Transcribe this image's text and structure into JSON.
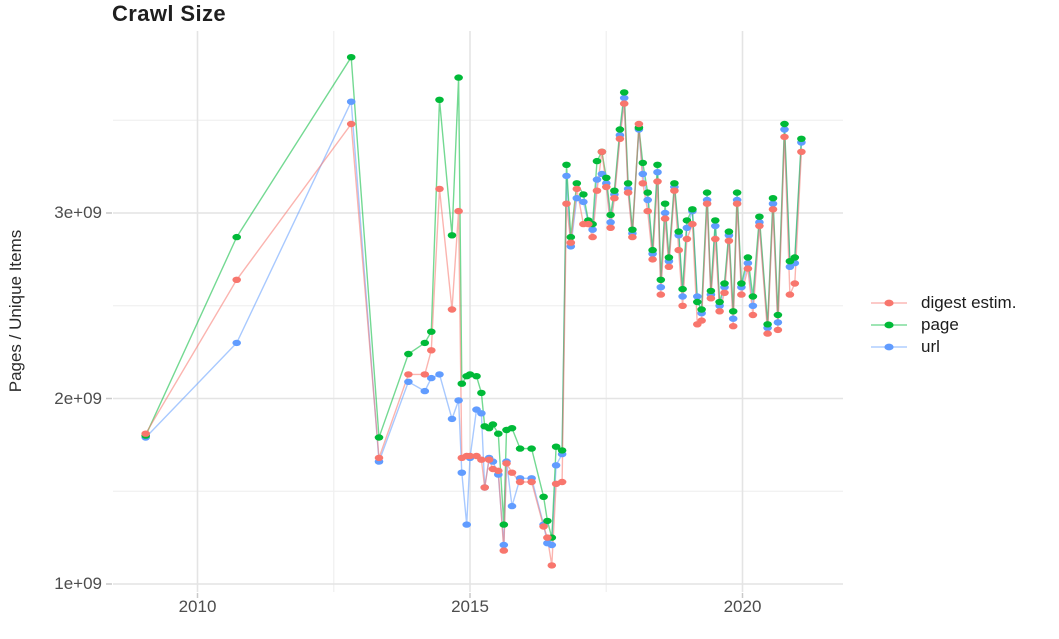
{
  "title": "Crawl Size",
  "axes": {
    "y": {
      "title": "Pages / Unique Items",
      "ticks": [
        {
          "value": 1.0,
          "label": "1e+09"
        },
        {
          "value": 2.0,
          "label": "2e+09"
        },
        {
          "value": 3.0,
          "label": "3e+09"
        }
      ],
      "minor": [
        1.5,
        2.5,
        3.5
      ],
      "range_billions": [
        0.95,
        3.99
      ]
    },
    "x": {
      "ticks": [
        {
          "value": 2010,
          "label": "2010"
        },
        {
          "value": 2015,
          "label": "2015"
        },
        {
          "value": 2020,
          "label": "2020"
        }
      ],
      "minor": [
        2012.5,
        2017.5,
        2022.5
      ],
      "range_years": [
        2008.45,
        2021.84
      ]
    }
  },
  "legend": {
    "items": [
      {
        "label": "digest estim.",
        "color": "#F8766D"
      },
      {
        "label": "page",
        "color": "#00BA38"
      },
      {
        "label": "url",
        "color": "#619CFF"
      }
    ]
  },
  "style": {
    "grid_major_color": "#e4e4e4",
    "grid_minor_color": "#f0f0f0",
    "tick_mark_color": "#c9c9c9",
    "background": "#ffffff",
    "line_opacity": 0.55
  },
  "chart_data": {
    "type": "line",
    "title": "Crawl Size",
    "xlabel": "",
    "ylabel": "Pages / Unique Items",
    "y_unit": "billions (1e9)",
    "grid": true,
    "legend_position": "right",
    "ylim": [
      0.95,
      3.99
    ],
    "xlim": [
      2008.45,
      2021.84
    ],
    "x": [
      2009.05,
      2010.72,
      2012.82,
      2013.33,
      2013.87,
      2014.17,
      2014.29,
      2014.44,
      2014.67,
      2014.79,
      2014.85,
      2014.94,
      2015.0,
      2015.12,
      2015.21,
      2015.27,
      2015.35,
      2015.42,
      2015.52,
      2015.62,
      2015.67,
      2015.77,
      2015.92,
      2016.13,
      2016.35,
      2016.42,
      2016.5,
      2016.58,
      2016.69,
      2016.77,
      2016.85,
      2016.96,
      2017.08,
      2017.17,
      2017.25,
      2017.33,
      2017.42,
      2017.5,
      2017.58,
      2017.65,
      2017.75,
      2017.83,
      2017.9,
      2017.98,
      2018.1,
      2018.17,
      2018.26,
      2018.35,
      2018.44,
      2018.5,
      2018.58,
      2018.65,
      2018.75,
      2018.83,
      2018.9,
      2018.98,
      2019.08,
      2019.17,
      2019.25,
      2019.35,
      2019.42,
      2019.5,
      2019.58,
      2019.67,
      2019.75,
      2019.83,
      2019.9,
      2019.98,
      2020.1,
      2020.19,
      2020.31,
      2020.46,
      2020.56,
      2020.65,
      2020.77,
      2020.87,
      2020.96,
      2021.08
    ],
    "series": [
      {
        "name": "digest estim.",
        "color": "#F8766D",
        "values": [
          1.81,
          2.64,
          3.48,
          1.68,
          2.13,
          2.13,
          2.26,
          3.13,
          2.48,
          3.01,
          1.68,
          1.69,
          1.69,
          1.69,
          1.67,
          1.52,
          1.67,
          1.62,
          1.61,
          1.18,
          1.65,
          1.6,
          1.55,
          1.55,
          1.31,
          1.25,
          1.1,
          1.54,
          1.55,
          3.05,
          2.84,
          3.13,
          2.94,
          2.94,
          2.87,
          3.12,
          3.33,
          3.14,
          2.92,
          3.08,
          3.4,
          3.59,
          3.11,
          2.87,
          3.48,
          3.16,
          3.01,
          2.75,
          3.17,
          2.56,
          2.97,
          2.71,
          3.12,
          2.8,
          2.5,
          2.86,
          2.94,
          2.4,
          2.42,
          3.05,
          2.54,
          2.86,
          2.47,
          2.57,
          2.85,
          2.39,
          3.05,
          2.56,
          2.7,
          2.45,
          2.93,
          2.35,
          3.02,
          2.37,
          3.41,
          2.56,
          2.62,
          3.33
        ]
      },
      {
        "name": "page",
        "color": "#00BA38",
        "values": [
          1.8,
          2.87,
          3.84,
          1.79,
          2.24,
          2.3,
          2.36,
          3.61,
          2.88,
          3.73,
          2.08,
          2.12,
          2.13,
          2.12,
          2.03,
          1.85,
          1.84,
          1.86,
          1.81,
          1.32,
          1.83,
          1.84,
          1.73,
          1.73,
          1.47,
          1.34,
          1.25,
          1.74,
          1.72,
          3.26,
          2.87,
          3.16,
          3.1,
          2.96,
          2.94,
          3.28,
          3.33,
          3.19,
          2.99,
          3.12,
          3.45,
          3.65,
          3.16,
          2.91,
          3.46,
          3.27,
          3.11,
          2.8,
          3.26,
          2.64,
          3.05,
          2.76,
          3.16,
          2.9,
          2.59,
          2.96,
          3.02,
          2.52,
          2.48,
          3.11,
          2.58,
          2.96,
          2.52,
          2.62,
          2.9,
          2.47,
          3.11,
          2.62,
          2.76,
          2.55,
          2.98,
          2.4,
          3.08,
          2.45,
          3.48,
          2.74,
          2.76,
          3.4
        ]
      },
      {
        "name": "url",
        "color": "#619CFF",
        "values": [
          1.79,
          2.3,
          3.6,
          1.66,
          2.09,
          2.04,
          2.11,
          2.13,
          1.89,
          1.99,
          1.6,
          1.32,
          1.68,
          1.94,
          1.92,
          1.52,
          1.68,
          1.66,
          1.59,
          1.21,
          1.66,
          1.42,
          1.57,
          1.57,
          1.32,
          1.22,
          1.21,
          1.64,
          1.7,
          3.2,
          2.82,
          3.08,
          3.06,
          2.95,
          2.91,
          3.18,
          3.21,
          3.16,
          2.95,
          3.1,
          3.42,
          3.62,
          3.13,
          2.89,
          3.45,
          3.21,
          3.07,
          2.78,
          3.22,
          2.6,
          3.0,
          2.74,
          3.14,
          2.88,
          2.55,
          2.92,
          3.01,
          2.55,
          2.46,
          3.07,
          2.56,
          2.93,
          2.5,
          2.6,
          2.88,
          2.43,
          3.07,
          2.6,
          2.73,
          2.5,
          2.95,
          2.38,
          3.05,
          2.41,
          3.45,
          2.71,
          2.73,
          3.38
        ]
      }
    ]
  }
}
